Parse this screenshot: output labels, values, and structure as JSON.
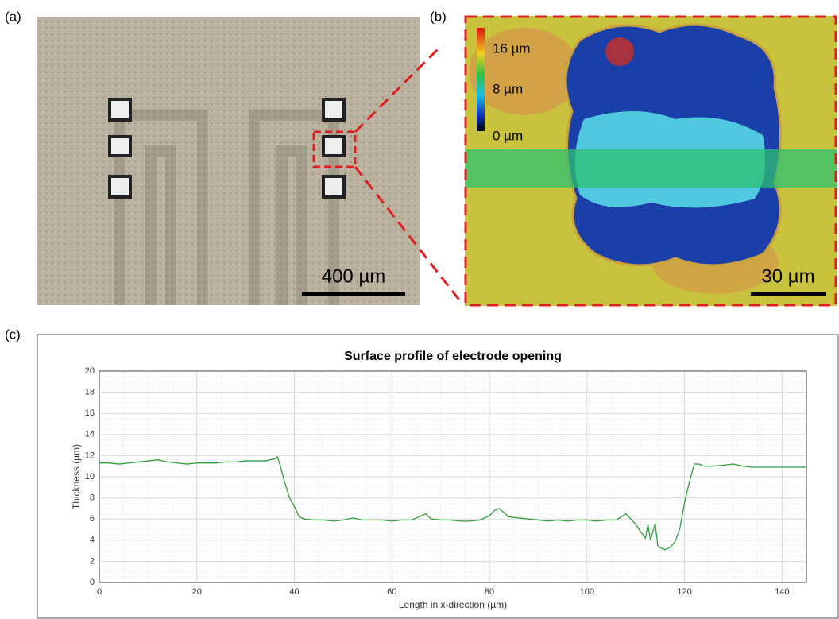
{
  "panels": {
    "a": {
      "label": "(a)",
      "scale_bar": "400 µm"
    },
    "b": {
      "label": "(b)",
      "scale_bar": "30 µm",
      "colorbar_labels": [
        "16 µm",
        "8 µm",
        "0 µm"
      ]
    },
    "c": {
      "label": "(c)"
    }
  },
  "chart_data": {
    "type": "line",
    "title": "Surface profile of electrode opening",
    "x_label": "Length in x-direction (µm)",
    "y_label": "Thickness (µm)",
    "x": [
      0,
      2,
      4,
      6,
      8,
      10,
      12,
      14,
      16,
      18,
      20,
      22,
      24,
      26,
      28,
      30,
      32,
      34,
      36,
      36.5,
      37,
      38,
      39,
      40,
      41,
      42,
      44,
      46,
      48,
      50,
      52,
      54,
      56,
      58,
      60,
      62,
      64,
      66,
      67,
      68,
      70,
      72,
      74,
      76,
      78,
      80,
      81,
      82,
      83,
      84,
      86,
      88,
      90,
      92,
      94,
      96,
      98,
      100,
      102,
      104,
      106,
      107,
      108,
      109,
      110,
      111,
      112,
      112.5,
      113,
      114,
      114.5,
      115,
      116,
      117,
      118,
      119,
      120,
      121,
      122,
      123,
      124,
      126,
      128,
      130,
      132,
      134,
      136,
      138,
      140,
      142,
      144,
      145
    ],
    "series": [
      {
        "color": "#2e9e3a",
        "values": [
          11.3,
          11.3,
          11.2,
          11.3,
          11.4,
          11.5,
          11.6,
          11.4,
          11.3,
          11.2,
          11.3,
          11.3,
          11.3,
          11.4,
          11.4,
          11.5,
          11.5,
          11.5,
          11.7,
          11.9,
          11.2,
          9.5,
          8.0,
          7.2,
          6.2,
          6.0,
          5.9,
          5.9,
          5.8,
          5.9,
          6.1,
          5.9,
          5.9,
          5.9,
          5.8,
          5.9,
          5.9,
          6.3,
          6.5,
          6.0,
          5.9,
          5.9,
          5.8,
          5.8,
          5.9,
          6.3,
          6.8,
          7.0,
          6.6,
          6.2,
          6.1,
          6.0,
          5.9,
          5.8,
          5.9,
          5.8,
          5.9,
          5.9,
          5.8,
          5.9,
          5.9,
          6.2,
          6.5,
          6.0,
          5.5,
          4.8,
          4.2,
          5.5,
          4.0,
          5.6,
          3.5,
          3.3,
          3.1,
          3.3,
          3.8,
          5.0,
          7.5,
          9.5,
          11.2,
          11.2,
          11.0,
          11.0,
          11.1,
          11.2,
          11.0,
          10.9,
          10.9,
          10.9,
          10.9,
          10.9,
          10.9,
          10.9
        ]
      }
    ],
    "xlim": [
      0,
      145
    ],
    "xticks": [
      0,
      20,
      40,
      60,
      80,
      100,
      120,
      140
    ],
    "ylim": [
      0,
      20
    ],
    "yticks": [
      0,
      2,
      4,
      6,
      8,
      10,
      12,
      14,
      16,
      18,
      20
    ],
    "grid": true,
    "minor_grid": true
  }
}
